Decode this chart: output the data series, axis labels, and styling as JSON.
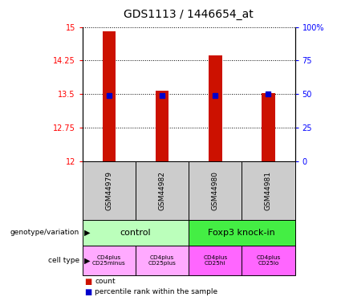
{
  "title": "GDS1113 / 1446654_at",
  "samples": [
    "GSM44979",
    "GSM44982",
    "GSM44980",
    "GSM44981"
  ],
  "bar_values": [
    14.9,
    13.58,
    14.37,
    13.52
  ],
  "bar_base": 12.0,
  "percentile_values": [
    13.47,
    13.47,
    13.47,
    13.5
  ],
  "ylim": [
    12,
    15
  ],
  "yticks": [
    12,
    12.75,
    13.5,
    14.25,
    15
  ],
  "ytick_labels": [
    "12",
    "12.75",
    "13.5",
    "14.25",
    "15"
  ],
  "right_yticks": [
    0,
    25,
    50,
    75,
    100
  ],
  "right_ytick_labels": [
    "0",
    "25",
    "50",
    "75",
    "100%"
  ],
  "bar_color": "#cc1100",
  "percentile_color": "#0000cc",
  "genotype_groups": [
    {
      "label": "control",
      "start": 0,
      "end": 2,
      "color": "#bbffbb"
    },
    {
      "label": "Foxp3 knock-in",
      "start": 2,
      "end": 4,
      "color": "#44ee44"
    }
  ],
  "cell_types": [
    {
      "label": "CD4plus\nCD25minus",
      "color": "#ffaaff"
    },
    {
      "label": "CD4plus\nCD25plus",
      "color": "#ffaaff"
    },
    {
      "label": "CD4plus\nCD25hi",
      "color": "#ff66ff"
    },
    {
      "label": "CD4plus\nCD25lo",
      "color": "#ff66ff"
    }
  ],
  "legend_count_color": "#cc1100",
  "legend_percentile_color": "#0000cc",
  "sample_bg_color": "#cccccc",
  "title_fontsize": 10,
  "tick_fontsize": 7,
  "label_fontsize": 7
}
